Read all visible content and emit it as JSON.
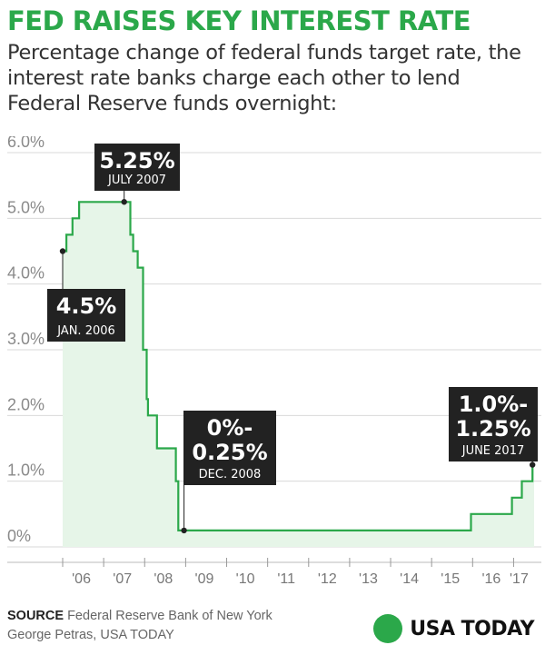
{
  "title": "FED RAISES KEY INTEREST RATE",
  "subtitle": "Percentage change of federal funds target rate, the interest rate banks charge each other to lend Federal Reserve funds overnight:",
  "source_label": "SOURCE",
  "source_text": "Federal Reserve Bank of New York",
  "credit": "George Petras, USA TODAY",
  "logo_text": "USA TODAY",
  "colors": {
    "accent": "#2ba84a",
    "fill": "#e6f5e8",
    "callout": "#222222",
    "grid": "#d9d9d9"
  },
  "chart_data": {
    "type": "area",
    "title": "FED RAISES KEY INTEREST RATE",
    "ylabel": "",
    "xlabel": "",
    "ylim": [
      0,
      6.0
    ],
    "xlim": [
      2005.6,
      2017.6
    ],
    "yticks": [
      {
        "value": 6.0,
        "label": "6.0%"
      },
      {
        "value": 5.0,
        "label": "5.0%"
      },
      {
        "value": 4.0,
        "label": "4.0%"
      },
      {
        "value": 3.0,
        "label": "3.0%"
      },
      {
        "value": 2.0,
        "label": "2.0%"
      },
      {
        "value": 1.0,
        "label": "1.0%"
      },
      {
        "value": 0.0,
        "label": "0%"
      }
    ],
    "xticks": [
      {
        "value": 2006,
        "label": "'06"
      },
      {
        "value": 2007,
        "label": "'07"
      },
      {
        "value": 2008,
        "label": "'08"
      },
      {
        "value": 2009,
        "label": "'09"
      },
      {
        "value": 2010,
        "label": "'10"
      },
      {
        "value": 2011,
        "label": "'11"
      },
      {
        "value": 2012,
        "label": "'12"
      },
      {
        "value": 2013,
        "label": "'13"
      },
      {
        "value": 2014,
        "label": "'14"
      },
      {
        "value": 2015,
        "label": "'15"
      },
      {
        "value": 2016,
        "label": "'16"
      },
      {
        "value": 2017,
        "label": "'17"
      }
    ],
    "grid": true,
    "series": [
      {
        "x": [
          2006.0,
          2006.09,
          2006.09,
          2006.24,
          2006.24,
          2006.4,
          2006.4,
          2006.49,
          2006.49,
          2007.65,
          2007.65,
          2007.72,
          2007.72,
          2007.83,
          2007.83,
          2007.96,
          2007.96,
          2008.05,
          2008.05,
          2008.08,
          2008.08,
          2008.3,
          2008.3,
          2008.76,
          2008.76,
          2008.82,
          2008.82,
          2008.96,
          2008.96,
          2015.96,
          2015.96,
          2016.96,
          2016.96,
          2017.2,
          2017.2,
          2017.46,
          2017.46,
          2017.5
        ],
        "values": [
          4.5,
          4.5,
          4.75,
          4.75,
          5.0,
          5.0,
          5.25,
          5.25,
          5.25,
          5.25,
          4.75,
          4.75,
          4.5,
          4.5,
          4.25,
          4.25,
          3.0,
          3.0,
          2.25,
          2.25,
          2.0,
          2.0,
          1.5,
          1.5,
          1.0,
          1.0,
          0.25,
          0.25,
          0.25,
          0.25,
          0.5,
          0.5,
          0.75,
          0.75,
          1.0,
          1.0,
          1.25,
          1.25
        ]
      }
    ],
    "annotations": [
      {
        "x": 2006.0,
        "y": 4.5,
        "big": [
          "4.5%"
        ],
        "small": "JAN. 2006"
      },
      {
        "x": 2007.5,
        "y": 5.25,
        "big": [
          "5.25%"
        ],
        "small": "JULY 2007"
      },
      {
        "x": 2008.96,
        "y": 0.25,
        "big": [
          "0%-",
          "0.25%"
        ],
        "small": "DEC. 2008"
      },
      {
        "x": 2017.46,
        "y": 1.25,
        "big": [
          "1.0%-",
          "1.25%"
        ],
        "small": "JUNE 2017"
      }
    ]
  }
}
